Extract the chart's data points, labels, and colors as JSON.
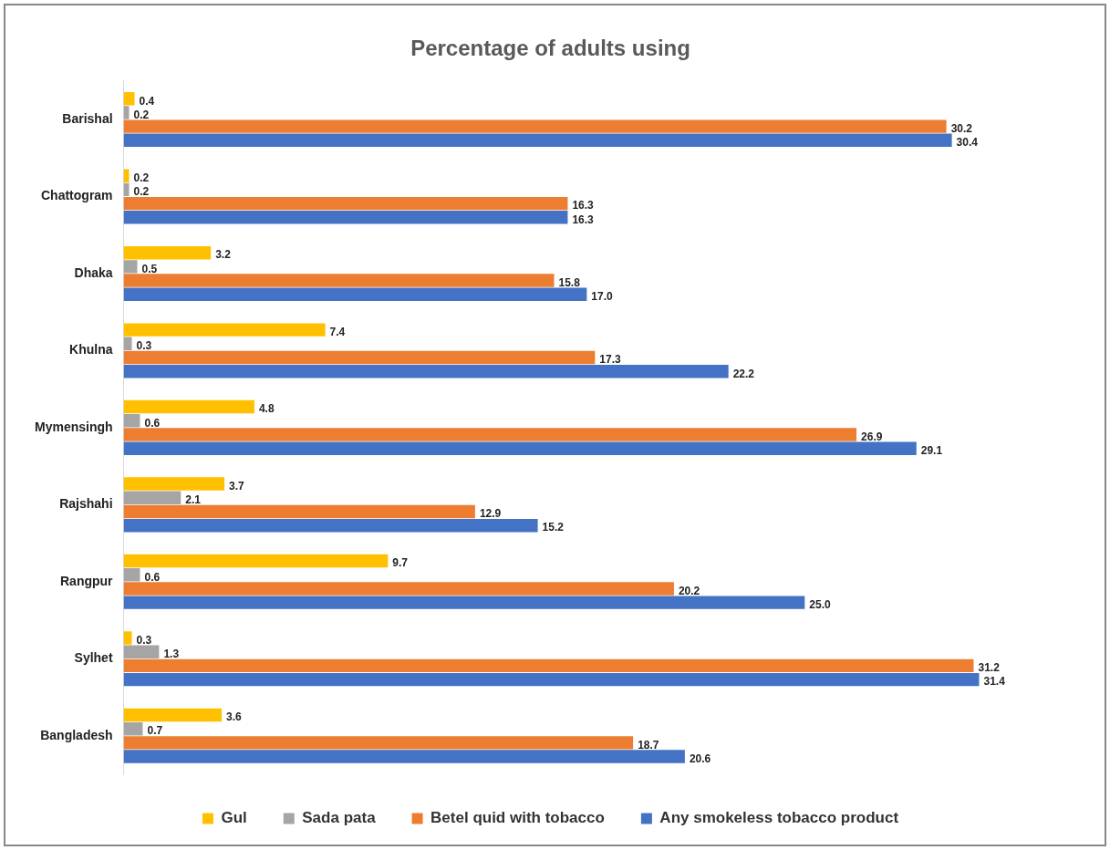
{
  "chart_data": {
    "type": "bar",
    "orientation": "horizontal",
    "title": "Percentage of adults using",
    "legend": "bottom",
    "grid": false,
    "categories": [
      "Barishal",
      "Chattogram",
      "Dhaka",
      "Khulna",
      "Mymensingh",
      "Rajshahi",
      "Rangpur",
      "Sylhet",
      "Bangladesh"
    ],
    "series": [
      {
        "name": "Gul",
        "color": "#ffc000",
        "values": [
          0.4,
          0.2,
          3.2,
          7.4,
          4.8,
          3.7,
          9.7,
          0.3,
          3.6
        ],
        "value_labels": [
          "0.4",
          "0.2",
          "3.2",
          "7.4",
          "4.8",
          "3.7",
          "9.7",
          "0.3",
          "3.6"
        ]
      },
      {
        "name": "Sada pata",
        "color": "#a5a5a5",
        "values": [
          0.2,
          0.2,
          0.5,
          0.3,
          0.6,
          2.1,
          0.6,
          1.3,
          0.7
        ],
        "value_labels": [
          "0.2",
          "0.2",
          "0.5",
          "0.3",
          "0.6",
          "2.1",
          "0.6",
          "1.3",
          "0.7"
        ]
      },
      {
        "name": "Betel quid with tobacco",
        "color": "#ed7d31",
        "values": [
          30.2,
          16.3,
          15.8,
          17.3,
          26.9,
          12.9,
          20.2,
          31.2,
          18.7
        ],
        "value_labels": [
          "30.2",
          "16.3",
          "15.8",
          "17.3",
          "26.9",
          "12.9",
          "20.2",
          "31.2",
          "18.7"
        ]
      },
      {
        "name": "Any smokeless tobacco product",
        "color": "#4472c4",
        "values": [
          30.4,
          16.3,
          17.0,
          22.2,
          29.1,
          15.2,
          25.0,
          31.4,
          20.6
        ],
        "value_labels": [
          "30.4",
          "16.3",
          "17.0",
          "22.2",
          "29.1",
          "15.2",
          "25.0",
          "31.4",
          "20.6"
        ]
      }
    ]
  }
}
